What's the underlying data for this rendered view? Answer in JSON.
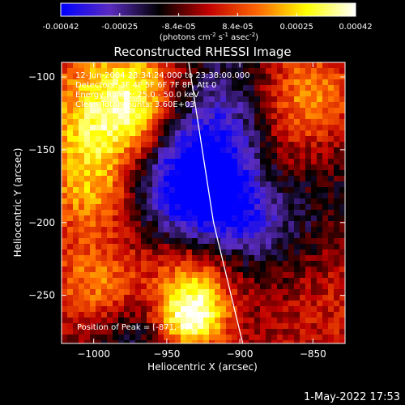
{
  "colorbar": {
    "ticks": [
      "-0.00042",
      "-0.00025",
      "-8.4e-05",
      "8.4e-05",
      "0.00025",
      "0.00042"
    ],
    "unit_main": "(photons cm",
    "unit_exp1": "-2",
    "unit_mid": " s",
    "unit_exp2": "-1",
    "unit_tail": " asec",
    "unit_exp3": "-2",
    "unit_close": ")"
  },
  "chart_data": {
    "type": "heatmap",
    "title": "Reconstructed RHESSI Image",
    "xlabel": "Heliocentric X (arcsec)",
    "ylabel": "Heliocentric Y (arcsec)",
    "xlim": [
      -1022,
      -828
    ],
    "ylim": [
      -283,
      -90
    ],
    "x_ticks": [
      -1000,
      -950,
      -900,
      -850
    ],
    "x_tick_labels": [
      "−1000",
      "−950",
      "−900",
      "−850"
    ],
    "y_ticks": [
      -100,
      -150,
      -200,
      -250
    ],
    "y_tick_labels": [
      "−100",
      "−150",
      "−200",
      "−250"
    ],
    "color_range": [
      -0.00042,
      0.00042
    ],
    "colormap": [
      "#0000ff",
      "#5a2bc0",
      "#000000",
      "#c00000",
      "#ff6600",
      "#ffff00",
      "#ffffff"
    ],
    "peak": [
      -871,
      -96
    ],
    "limb_points": [
      [
        -935,
        -90
      ],
      [
        -918,
        -200
      ],
      [
        -898,
        -283
      ]
    ],
    "annotations": {
      "time": "12-Jun-2004 23:34:24.000 to 23:38:00.000",
      "detectors": "Detectors: 3F 4F 5F 6F 7F 8F, Att 0",
      "energy": "Energy Range: 25.0 - 50.0 keV",
      "clean": "Clean    Total counts: 3.60E+03",
      "peak": "Position of Peak = [-871,-96]"
    }
  },
  "footer": {
    "date": "1-May-2022 17:53"
  }
}
